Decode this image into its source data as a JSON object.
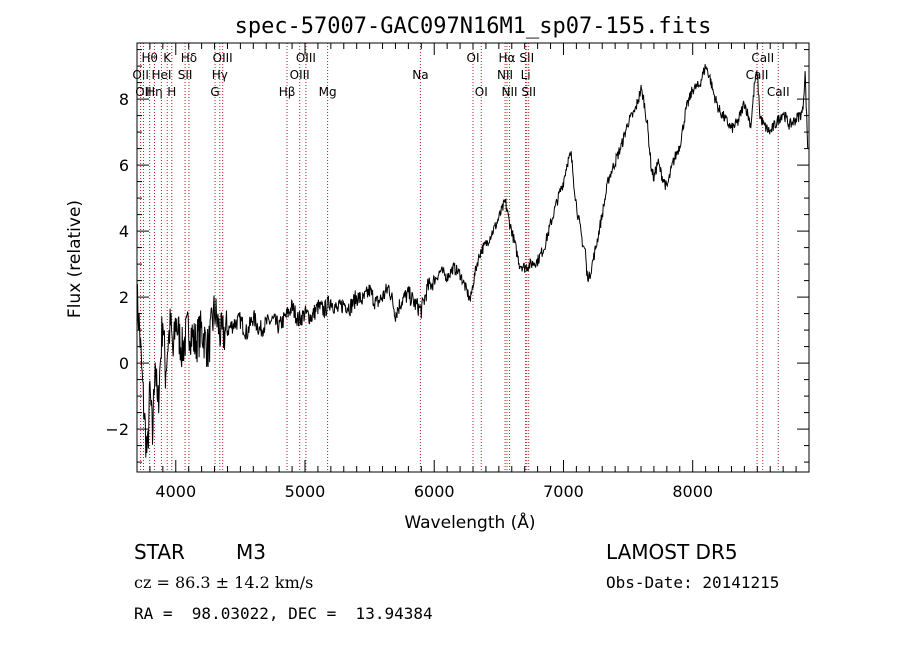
{
  "chart_data": {
    "type": "line",
    "title": "spec-57007-GAC097N16M1_sp07-155.fits",
    "xlabel": "Wavelength (Å)",
    "ylabel": "Flux (relative)",
    "xlim": [
      3700,
      8900
    ],
    "ylim": [
      -3.3,
      9.7
    ],
    "xticks": [
      4000,
      5000,
      6000,
      7000,
      8000
    ],
    "yticks": [
      -2,
      0,
      2,
      4,
      6,
      8
    ],
    "grid": false,
    "series": [
      {
        "x": [
          3700,
          3720,
          3740,
          3760,
          3780,
          3800,
          3820,
          3840,
          3860,
          3880,
          3900,
          3920,
          3940,
          3960,
          3980,
          4000,
          4050,
          4100,
          4150,
          4200,
          4250,
          4300,
          4350,
          4400,
          4450,
          4500,
          4550,
          4600,
          4650,
          4700,
          4750,
          4800,
          4850,
          4900,
          4950,
          5000,
          5050,
          5100,
          5150,
          5200,
          5250,
          5300,
          5350,
          5400,
          5450,
          5500,
          5550,
          5600,
          5650,
          5700,
          5750,
          5800,
          5850,
          5900,
          5950,
          6000,
          6050,
          6100,
          6150,
          6200,
          6250,
          6280,
          6300,
          6330,
          6360,
          6400,
          6440,
          6480,
          6520,
          6550,
          6580,
          6600,
          6630,
          6660,
          6700,
          6750,
          6800,
          6850,
          6900,
          6950,
          7000,
          7030,
          7060,
          7080,
          7100,
          7120,
          7150,
          7170,
          7180,
          7200,
          7250,
          7300,
          7350,
          7400,
          7450,
          7500,
          7550,
          7580,
          7600,
          7620,
          7650,
          7680,
          7700,
          7730,
          7760,
          7800,
          7850,
          7900,
          7950,
          8000,
          8050,
          8100,
          8130,
          8160,
          8200,
          8250,
          8300,
          8350,
          8400,
          8450,
          8480,
          8500,
          8520,
          8550,
          8600,
          8650,
          8700,
          8750,
          8800,
          8850,
          8870,
          8890
        ],
        "values": [
          2.0,
          1.0,
          -0.5,
          -1.8,
          -2.9,
          -0.8,
          -2.3,
          0.3,
          -1.5,
          0.0,
          1.4,
          -0.3,
          0.6,
          1.2,
          0.2,
          1.3,
          0.4,
          1.1,
          0.6,
          1.0,
          0.4,
          1.6,
          0.8,
          1.0,
          1.2,
          1.3,
          0.9,
          1.4,
          1.0,
          1.2,
          1.3,
          1.1,
          1.4,
          1.7,
          1.3,
          1.5,
          1.4,
          1.7,
          1.6,
          1.9,
          1.6,
          1.8,
          1.7,
          2.0,
          1.9,
          2.2,
          1.8,
          2.0,
          2.3,
          1.5,
          1.9,
          2.1,
          1.8,
          1.6,
          2.3,
          2.5,
          2.8,
          2.6,
          2.9,
          2.7,
          2.2,
          1.9,
          2.4,
          3.0,
          3.4,
          3.6,
          3.9,
          4.2,
          4.6,
          4.9,
          4.3,
          4.0,
          3.5,
          3.0,
          2.9,
          3.0,
          3.1,
          3.5,
          4.2,
          4.9,
          5.5,
          6.1,
          6.3,
          5.5,
          4.8,
          4.3,
          3.6,
          3.4,
          2.7,
          2.6,
          3.5,
          4.5,
          5.6,
          6.1,
          6.6,
          7.3,
          7.6,
          8.0,
          8.3,
          8.0,
          7.2,
          5.9,
          5.6,
          6.1,
          5.7,
          5.3,
          6.1,
          6.6,
          7.7,
          8.3,
          8.4,
          9.0,
          8.7,
          8.2,
          7.7,
          7.4,
          7.1,
          7.3,
          7.9,
          7.2,
          8.5,
          8.8,
          7.5,
          7.2,
          7.0,
          7.3,
          7.6,
          7.2,
          7.4,
          7.6,
          8.8,
          6.5
        ]
      }
    ],
    "annotations": {
      "note": "vertical dotted red reference lines with spectral line labels",
      "lines": [
        {
          "x": 3728,
          "label": "OII",
          "row": 2
        },
        {
          "x": 3750,
          "label": "OII",
          "row": 3
        },
        {
          "x": 3798,
          "label": "Hθ",
          "row": 1
        },
        {
          "x": 3835,
          "label": "Hη",
          "row": 3
        },
        {
          "x": 3889,
          "label": "HeI",
          "row": 2
        },
        {
          "x": 3934,
          "label": "K",
          "row": 1
        },
        {
          "x": 3969,
          "label": "H",
          "row": 3
        },
        {
          "x": 4072,
          "label": "SII",
          "row": 2
        },
        {
          "x": 4102,
          "label": "Hδ",
          "row": 1
        },
        {
          "x": 4304,
          "label": "G",
          "row": 3
        },
        {
          "x": 4341,
          "label": "Hγ",
          "row": 2
        },
        {
          "x": 4363,
          "label": "OIII",
          "row": 1
        },
        {
          "x": 4861,
          "label": "Hβ",
          "row": 3
        },
        {
          "x": 4959,
          "label": "OIII",
          "row": 2
        },
        {
          "x": 5007,
          "label": "OIII",
          "row": 1
        },
        {
          "x": 5175,
          "label": "Mg",
          "row": 3
        },
        {
          "x": 5893,
          "label": "Na",
          "row": 2
        },
        {
          "x": 6300,
          "label": "OI",
          "row": 1
        },
        {
          "x": 6364,
          "label": "OI",
          "row": 3
        },
        {
          "x": 6548,
          "label": "NII",
          "row": 2
        },
        {
          "x": 6563,
          "label": "Hα",
          "row": 1
        },
        {
          "x": 6583,
          "label": "NII",
          "row": 3
        },
        {
          "x": 6707,
          "label": "Li",
          "row": 2
        },
        {
          "x": 6716,
          "label": "SII",
          "row": 1
        },
        {
          "x": 6731,
          "label": "SII",
          "row": 3
        },
        {
          "x": 8498,
          "label": "CaII",
          "row": 2
        },
        {
          "x": 8542,
          "label": "CaII",
          "row": 1
        },
        {
          "x": 8662,
          "label": "CaII",
          "row": 3
        }
      ]
    }
  },
  "info": {
    "object_class": "STAR",
    "subclass": "M3",
    "survey": "LAMOST DR5",
    "cz": "cz = 86.3 ± 14.2 km/s",
    "obs_date": "Obs-Date: 20141215",
    "coords": "RA =  98.03022, DEC =  13.94384"
  },
  "colors": {
    "line": "#000000",
    "marker": "#b22222",
    "background": "#ffffff"
  }
}
